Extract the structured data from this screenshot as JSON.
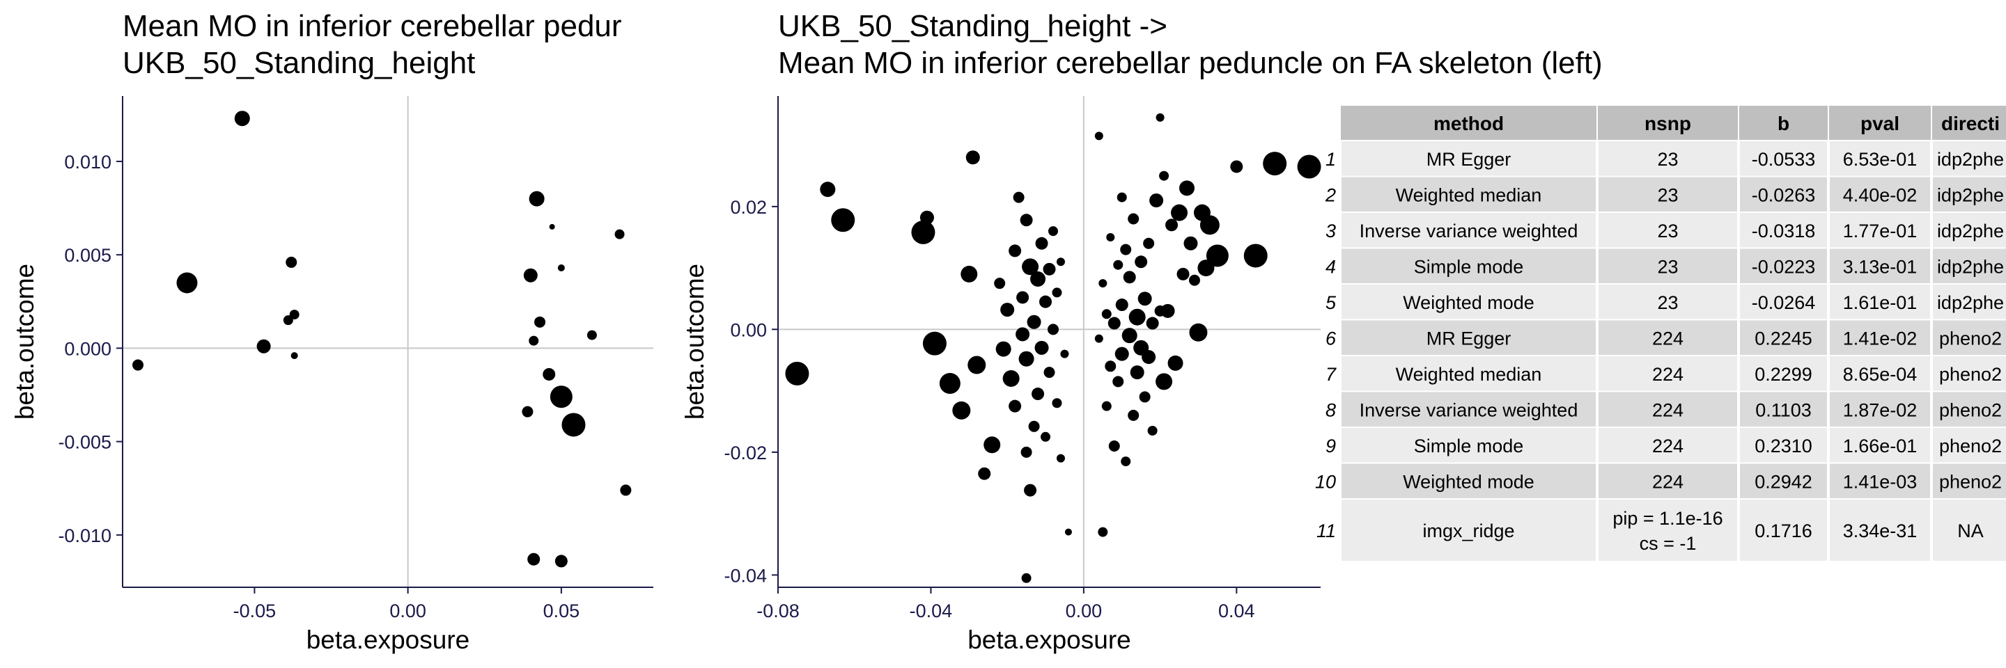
{
  "chart_data": [
    {
      "type": "scatter",
      "title": [
        "Mean MO in inferior cerebellar pedur",
        " UKB_50_Standing_height"
      ],
      "xlabel": "beta.exposure",
      "ylabel": "beta.outcome",
      "xlim": [
        -0.093,
        0.08
      ],
      "ylim": [
        -0.0128,
        0.0135
      ],
      "xticks": [
        -0.05,
        0.0,
        0.05
      ],
      "xtick_labels": [
        "-0.05",
        "0.00",
        "0.05"
      ],
      "yticks": [
        -0.01,
        -0.005,
        0.0,
        0.005,
        0.01
      ],
      "ytick_labels": [
        "-0.010",
        "-0.005",
        "0.000",
        "0.005",
        "0.010"
      ],
      "grid": false,
      "reference_lines": {
        "x": 0,
        "y": 0
      },
      "points": [
        {
          "x": -0.054,
          "y": 0.0123,
          "s": 11
        },
        {
          "x": -0.072,
          "y": 0.0035,
          "s": 15
        },
        {
          "x": -0.088,
          "y": -0.0009,
          "s": 8
        },
        {
          "x": -0.047,
          "y": 0.0001,
          "s": 10
        },
        {
          "x": -0.038,
          "y": 0.0046,
          "s": 8
        },
        {
          "x": -0.037,
          "y": 0.0018,
          "s": 7
        },
        {
          "x": -0.039,
          "y": 0.0015,
          "s": 7
        },
        {
          "x": -0.037,
          "y": -0.0004,
          "s": 5
        },
        {
          "x": 0.042,
          "y": 0.008,
          "s": 11
        },
        {
          "x": 0.047,
          "y": 0.0065,
          "s": 4
        },
        {
          "x": 0.069,
          "y": 0.0061,
          "s": 7
        },
        {
          "x": 0.04,
          "y": 0.0039,
          "s": 10
        },
        {
          "x": 0.05,
          "y": 0.0043,
          "s": 5
        },
        {
          "x": 0.043,
          "y": 0.0014,
          "s": 8
        },
        {
          "x": 0.06,
          "y": 0.0007,
          "s": 7
        },
        {
          "x": 0.041,
          "y": 0.0004,
          "s": 7
        },
        {
          "x": 0.046,
          "y": -0.0014,
          "s": 9
        },
        {
          "x": 0.05,
          "y": -0.0026,
          "s": 16
        },
        {
          "x": 0.039,
          "y": -0.0034,
          "s": 8
        },
        {
          "x": 0.054,
          "y": -0.0041,
          "s": 17
        },
        {
          "x": 0.071,
          "y": -0.0076,
          "s": 8
        },
        {
          "x": 0.041,
          "y": -0.0113,
          "s": 9
        },
        {
          "x": 0.05,
          "y": -0.0114,
          "s": 9
        }
      ]
    },
    {
      "type": "scatter",
      "title": [
        "UKB_50_Standing_height ->",
        " Mean MO in inferior cerebellar peduncle on FA skeleton (left)"
      ],
      "xlabel": "beta.exposure",
      "ylabel": "beta.outcome",
      "xlim": [
        -0.08,
        0.062
      ],
      "ylim": [
        -0.042,
        0.038
      ],
      "xticks": [
        -0.08,
        -0.04,
        0.0,
        0.04
      ],
      "xtick_labels": [
        "-0.08",
        "-0.04",
        "0.00",
        "0.04"
      ],
      "yticks": [
        -0.04,
        -0.02,
        0.0,
        0.02
      ],
      "ytick_labels": [
        "-0.04",
        "-0.02",
        "0.00",
        "0.02"
      ],
      "grid": false,
      "reference_lines": {
        "x": 0,
        "y": 0
      },
      "points": [
        {
          "x": -0.075,
          "y": -0.0072,
          "s": 17
        },
        {
          "x": -0.067,
          "y": 0.0228,
          "s": 11
        },
        {
          "x": -0.063,
          "y": 0.0178,
          "s": 17
        },
        {
          "x": -0.042,
          "y": 0.0158,
          "s": 17
        },
        {
          "x": -0.041,
          "y": 0.0182,
          "s": 10
        },
        {
          "x": -0.039,
          "y": -0.0023,
          "s": 17
        },
        {
          "x": -0.035,
          "y": -0.0088,
          "s": 15
        },
        {
          "x": -0.032,
          "y": -0.0132,
          "s": 13
        },
        {
          "x": -0.03,
          "y": 0.009,
          "s": 12
        },
        {
          "x": -0.029,
          "y": 0.028,
          "s": 10
        },
        {
          "x": -0.028,
          "y": -0.0058,
          "s": 13
        },
        {
          "x": -0.026,
          "y": -0.0235,
          "s": 9
        },
        {
          "x": -0.024,
          "y": -0.0188,
          "s": 12
        },
        {
          "x": -0.022,
          "y": 0.0075,
          "s": 8
        },
        {
          "x": -0.021,
          "y": -0.0032,
          "s": 11
        },
        {
          "x": -0.02,
          "y": 0.0032,
          "s": 10
        },
        {
          "x": -0.019,
          "y": -0.008,
          "s": 12
        },
        {
          "x": -0.018,
          "y": 0.0128,
          "s": 9
        },
        {
          "x": -0.018,
          "y": -0.0125,
          "s": 9
        },
        {
          "x": -0.017,
          "y": 0.0215,
          "s": 8
        },
        {
          "x": -0.016,
          "y": -0.0008,
          "s": 10
        },
        {
          "x": -0.016,
          "y": 0.0052,
          "s": 9
        },
        {
          "x": -0.015,
          "y": -0.0048,
          "s": 11
        },
        {
          "x": -0.015,
          "y": 0.0178,
          "s": 9
        },
        {
          "x": -0.015,
          "y": -0.02,
          "s": 8
        },
        {
          "x": -0.014,
          "y": 0.0102,
          "s": 12
        },
        {
          "x": -0.014,
          "y": -0.0262,
          "s": 9
        },
        {
          "x": -0.013,
          "y": 0.0012,
          "s": 10
        },
        {
          "x": -0.013,
          "y": -0.0158,
          "s": 8
        },
        {
          "x": -0.012,
          "y": 0.0082,
          "s": 11
        },
        {
          "x": -0.012,
          "y": -0.0105,
          "s": 9
        },
        {
          "x": -0.011,
          "y": 0.014,
          "s": 9
        },
        {
          "x": -0.011,
          "y": -0.003,
          "s": 10
        },
        {
          "x": -0.01,
          "y": 0.0045,
          "s": 9
        },
        {
          "x": -0.01,
          "y": -0.0175,
          "s": 7
        },
        {
          "x": -0.009,
          "y": 0.0098,
          "s": 9
        },
        {
          "x": -0.009,
          "y": -0.007,
          "s": 8
        },
        {
          "x": -0.008,
          "y": 0.0,
          "s": 8
        },
        {
          "x": -0.008,
          "y": 0.016,
          "s": 7
        },
        {
          "x": -0.007,
          "y": -0.012,
          "s": 7
        },
        {
          "x": -0.007,
          "y": 0.006,
          "s": 7
        },
        {
          "x": -0.006,
          "y": -0.021,
          "s": 6
        },
        {
          "x": -0.006,
          "y": 0.011,
          "s": 6
        },
        {
          "x": -0.005,
          "y": -0.004,
          "s": 6
        },
        {
          "x": -0.004,
          "y": -0.033,
          "s": 5
        },
        {
          "x": -0.015,
          "y": -0.0405,
          "s": 7
        },
        {
          "x": 0.004,
          "y": 0.0315,
          "s": 6
        },
        {
          "x": 0.005,
          "y": -0.033,
          "s": 7
        },
        {
          "x": 0.004,
          "y": -0.0015,
          "s": 6
        },
        {
          "x": 0.005,
          "y": 0.0075,
          "s": 6
        },
        {
          "x": 0.006,
          "y": -0.0125,
          "s": 7
        },
        {
          "x": 0.006,
          "y": 0.0025,
          "s": 7
        },
        {
          "x": 0.007,
          "y": -0.006,
          "s": 8
        },
        {
          "x": 0.007,
          "y": 0.015,
          "s": 6
        },
        {
          "x": 0.008,
          "y": -0.019,
          "s": 8
        },
        {
          "x": 0.008,
          "y": 0.001,
          "s": 9
        },
        {
          "x": 0.009,
          "y": 0.0105,
          "s": 7
        },
        {
          "x": 0.009,
          "y": -0.0085,
          "s": 8
        },
        {
          "x": 0.01,
          "y": 0.004,
          "s": 9
        },
        {
          "x": 0.01,
          "y": -0.004,
          "s": 10
        },
        {
          "x": 0.01,
          "y": 0.0215,
          "s": 7
        },
        {
          "x": 0.011,
          "y": -0.0215,
          "s": 7
        },
        {
          "x": 0.011,
          "y": 0.013,
          "s": 8
        },
        {
          "x": 0.012,
          "y": -0.001,
          "s": 11
        },
        {
          "x": 0.012,
          "y": 0.0085,
          "s": 9
        },
        {
          "x": 0.013,
          "y": -0.014,
          "s": 8
        },
        {
          "x": 0.013,
          "y": 0.018,
          "s": 8
        },
        {
          "x": 0.014,
          "y": 0.002,
          "s": 12
        },
        {
          "x": 0.014,
          "y": -0.007,
          "s": 10
        },
        {
          "x": 0.015,
          "y": 0.011,
          "s": 9
        },
        {
          "x": 0.015,
          "y": -0.003,
          "s": 11
        },
        {
          "x": 0.016,
          "y": 0.005,
          "s": 10
        },
        {
          "x": 0.016,
          "y": -0.011,
          "s": 8
        },
        {
          "x": 0.017,
          "y": -0.0045,
          "s": 10
        },
        {
          "x": 0.017,
          "y": 0.014,
          "s": 8
        },
        {
          "x": 0.018,
          "y": -0.0165,
          "s": 7
        },
        {
          "x": 0.018,
          "y": 0.001,
          "s": 9
        },
        {
          "x": 0.019,
          "y": 0.021,
          "s": 10
        },
        {
          "x": 0.02,
          "y": 0.003,
          "s": 8
        },
        {
          "x": 0.02,
          "y": 0.0345,
          "s": 6
        },
        {
          "x": 0.021,
          "y": -0.0085,
          "s": 12
        },
        {
          "x": 0.021,
          "y": 0.025,
          "s": 7
        },
        {
          "x": 0.022,
          "y": 0.003,
          "s": 10
        },
        {
          "x": 0.023,
          "y": 0.017,
          "s": 9
        },
        {
          "x": 0.024,
          "y": -0.0055,
          "s": 11
        },
        {
          "x": 0.025,
          "y": 0.019,
          "s": 12
        },
        {
          "x": 0.026,
          "y": 0.009,
          "s": 9
        },
        {
          "x": 0.027,
          "y": 0.023,
          "s": 11
        },
        {
          "x": 0.028,
          "y": 0.014,
          "s": 10
        },
        {
          "x": 0.029,
          "y": 0.008,
          "s": 8
        },
        {
          "x": 0.03,
          "y": -0.0005,
          "s": 13
        },
        {
          "x": 0.031,
          "y": 0.019,
          "s": 12
        },
        {
          "x": 0.032,
          "y": 0.01,
          "s": 12
        },
        {
          "x": 0.033,
          "y": 0.017,
          "s": 14
        },
        {
          "x": 0.035,
          "y": 0.012,
          "s": 16
        },
        {
          "x": 0.04,
          "y": 0.0265,
          "s": 9
        },
        {
          "x": 0.045,
          "y": 0.012,
          "s": 17
        },
        {
          "x": 0.05,
          "y": 0.027,
          "s": 17
        },
        {
          "x": 0.059,
          "y": 0.0265,
          "s": 17
        }
      ]
    },
    {
      "type": "table",
      "columns": [
        "",
        "method",
        "nsnp",
        "b",
        "pval",
        "directi"
      ],
      "rows": [
        [
          "1",
          "MR Egger",
          "23",
          "-0.0533",
          "6.53e-01",
          "idp2phe"
        ],
        [
          "2",
          "Weighted median",
          "23",
          "-0.0263",
          "4.40e-02",
          "idp2phe"
        ],
        [
          "3",
          "Inverse variance weighted",
          "23",
          "-0.0318",
          "1.77e-01",
          "idp2phe"
        ],
        [
          "4",
          "Simple mode",
          "23",
          "-0.0223",
          "3.13e-01",
          "idp2phe"
        ],
        [
          "5",
          "Weighted mode",
          "23",
          "-0.0264",
          "1.61e-01",
          "idp2phe"
        ],
        [
          "6",
          "MR Egger",
          "224",
          "0.2245",
          "1.41e-02",
          "pheno2"
        ],
        [
          "7",
          "Weighted median",
          "224",
          "0.2299",
          "8.65e-04",
          "pheno2"
        ],
        [
          "8",
          "Inverse variance weighted",
          "224",
          "0.1103",
          "1.87e-02",
          "pheno2"
        ],
        [
          "9",
          "Simple mode",
          "224",
          "0.2310",
          "1.66e-01",
          "pheno2"
        ],
        [
          "10",
          "Weighted mode",
          "224",
          "0.2942",
          "1.41e-03",
          "pheno2"
        ],
        [
          "11",
          "imgx_ridge",
          "pip = 1.1e-16\ncs = -1",
          "0.1716",
          "3.34e-31",
          "NA"
        ]
      ]
    }
  ]
}
